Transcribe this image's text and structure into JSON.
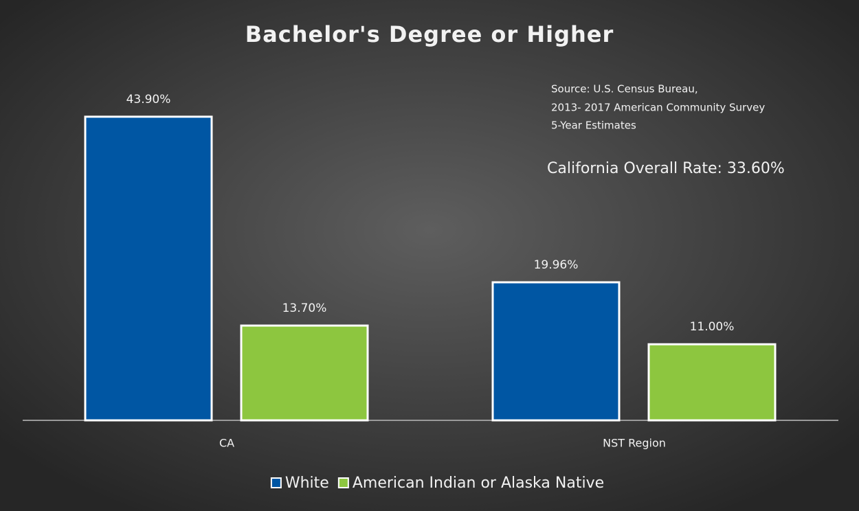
{
  "chart_data": {
    "type": "bar",
    "title": "Bachelor's Degree or Higher",
    "categories": [
      "CA",
      "NST Region"
    ],
    "series": [
      {
        "name": "White",
        "color": "#0056a3",
        "values": [
          43.9,
          19.96
        ],
        "value_labels": [
          "43.90%",
          "19.96%"
        ]
      },
      {
        "name": "American Indian or Alaska Native",
        "color": "#8dc63f",
        "values": [
          13.7,
          11.0
        ],
        "value_labels": [
          "13.70%",
          "11.00%"
        ]
      }
    ],
    "annotations": {
      "source": [
        "Source: U.S. Census Bureau,",
        "2013- 2017 American Community Survey",
        "5-Year Estimates"
      ],
      "overall": "California Overall Rate:  33.60%"
    },
    "legend": "bottom"
  }
}
